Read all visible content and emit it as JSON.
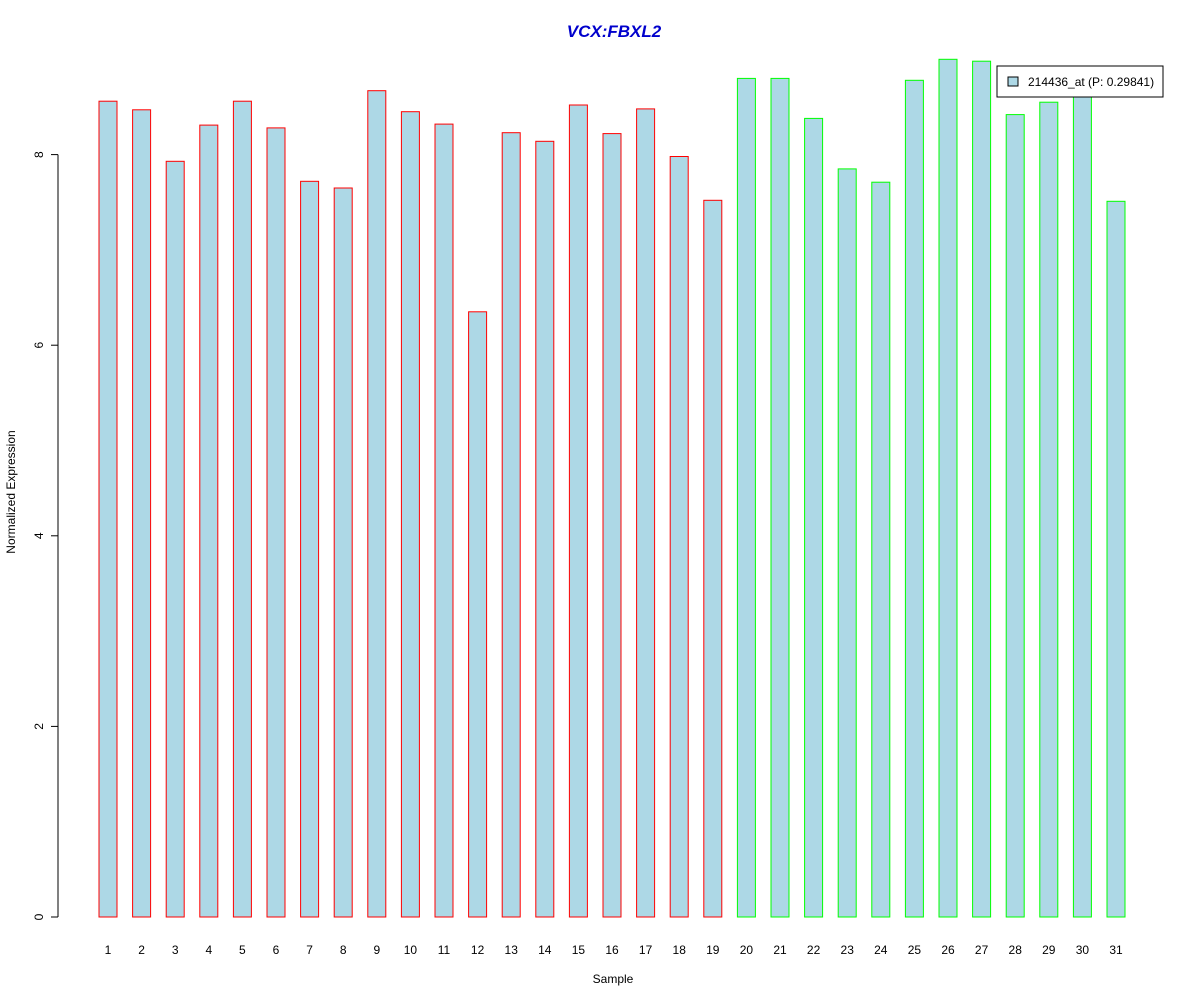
{
  "chart_data": {
    "type": "bar",
    "title": "VCX:FBXL2",
    "xlabel": "Sample",
    "ylabel": "Normalized Expression",
    "categories": [
      "1",
      "2",
      "3",
      "4",
      "5",
      "6",
      "7",
      "8",
      "9",
      "10",
      "11",
      "12",
      "13",
      "14",
      "15",
      "16",
      "17",
      "18",
      "19",
      "20",
      "21",
      "22",
      "23",
      "24",
      "25",
      "26",
      "27",
      "28",
      "29",
      "30",
      "31"
    ],
    "series": [
      {
        "name": "214436_at (P: 0.29841)",
        "values": [
          8.56,
          8.47,
          7.93,
          8.31,
          8.56,
          8.28,
          7.72,
          7.65,
          8.67,
          8.45,
          8.32,
          6.35,
          8.23,
          8.14,
          8.52,
          8.22,
          8.48,
          7.98,
          7.52,
          8.8,
          8.8,
          8.38,
          7.85,
          7.71,
          8.78,
          9.0,
          8.98,
          8.42,
          8.55,
          8.62,
          7.51
        ],
        "fill_color": "#ADD8E6"
      }
    ],
    "bar_border_colors": [
      "#FF0000",
      "#FF0000",
      "#FF0000",
      "#FF0000",
      "#FF0000",
      "#FF0000",
      "#FF0000",
      "#FF0000",
      "#FF0000",
      "#FF0000",
      "#FF0000",
      "#FF0000",
      "#FF0000",
      "#FF0000",
      "#FF0000",
      "#FF0000",
      "#FF0000",
      "#FF0000",
      "#FF0000",
      "#00FF00",
      "#00FF00",
      "#00FF00",
      "#00FF00",
      "#00FF00",
      "#00FF00",
      "#00FF00",
      "#00FF00",
      "#00FF00",
      "#00FF00",
      "#00FF00",
      "#00FF00"
    ],
    "ylim": [
      0,
      9
    ],
    "yticks": [
      0,
      2,
      4,
      6,
      8
    ],
    "grid": false,
    "legend": {
      "position": "top-right",
      "label": "214436_at (P: 0.29841)"
    },
    "colors": {
      "title": "#0000CC",
      "bar_fill": "#ADD8E6",
      "group1_border": "#FF0000",
      "group2_border": "#00FF00"
    }
  }
}
